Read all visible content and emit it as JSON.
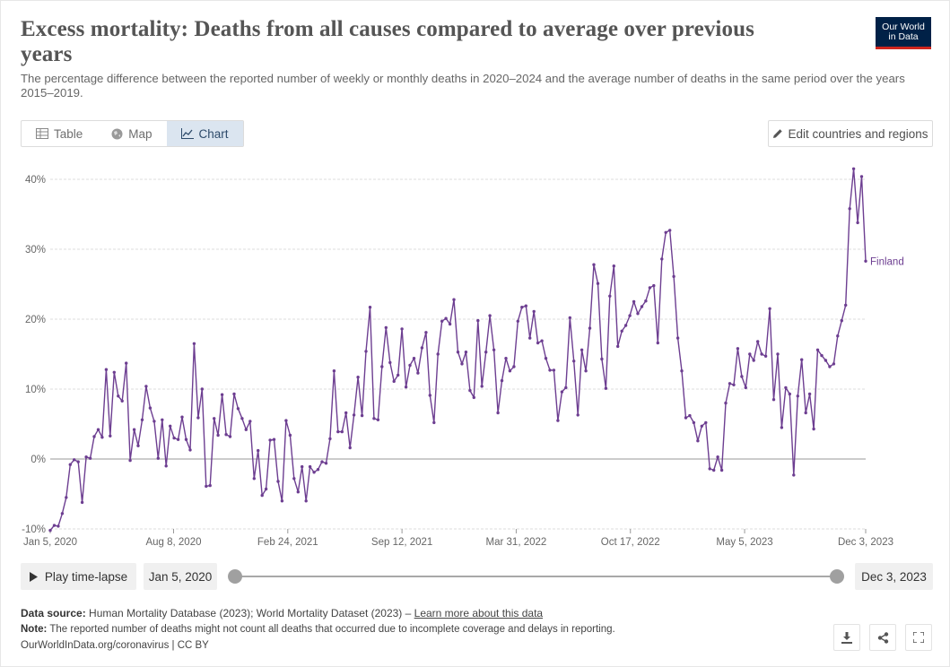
{
  "header": {
    "title": "Excess mortality: Deaths from all causes compared to average over previous years",
    "subtitle": "The percentage difference between the reported number of weekly or monthly deaths in 2020–2024 and the average number of deaths in the same period over the years 2015–2019.",
    "logo_line1": "Our World",
    "logo_line2": "in Data"
  },
  "tabs": [
    {
      "label": "Table",
      "icon": "table-icon"
    },
    {
      "label": "Map",
      "icon": "globe-icon"
    },
    {
      "label": "Chart",
      "icon": "line-chart-icon",
      "active": true
    }
  ],
  "edit_button": {
    "label": "Edit countries and regions",
    "icon": "pencil-icon"
  },
  "chart_data": {
    "type": "line",
    "y_tick_labels": [
      "-10%",
      "0%",
      "10%",
      "20%",
      "30%",
      "40%"
    ],
    "y_ticks": [
      -10,
      0,
      10,
      20,
      30,
      40
    ],
    "ylim": [
      -10,
      42
    ],
    "x_tick_labels": [
      "Jan 5, 2020",
      "Aug 8, 2020",
      "Feb 24, 2021",
      "Sep 12, 2021",
      "Mar 31, 2022",
      "Oct 17, 2022",
      "May 5, 2023",
      "Dec 3, 2023"
    ],
    "x_tick_dates": [
      "2020-01-05",
      "2020-08-08",
      "2021-02-24",
      "2021-09-12",
      "2022-03-31",
      "2022-10-17",
      "2023-05-05",
      "2023-12-03"
    ],
    "grid": "horizontal dotted",
    "series": [
      {
        "name": "Finland",
        "color": "#6d3e91",
        "x_start": "2020-01-05",
        "x_end": "2023-12-03",
        "values": [
          -10.2,
          -9.5,
          -9.6,
          -7.8,
          -5.5,
          -0.8,
          -0.1,
          -0.4,
          -6.2,
          0.3,
          0.1,
          3.2,
          4.2,
          3.1,
          12.8,
          3.3,
          12.4,
          9.0,
          8.3,
          13.7,
          -0.2,
          4.2,
          1.9,
          5.6,
          10.4,
          7.3,
          5.4,
          0.1,
          5.6,
          -1.0,
          4.7,
          3.0,
          2.8,
          6.0,
          2.8,
          1.3,
          16.5,
          5.9,
          10.0,
          -3.9,
          -3.8,
          5.8,
          3.4,
          9.2,
          3.5,
          3.2,
          9.3,
          7.2,
          5.8,
          4.2,
          5.4,
          -2.8,
          1.2,
          -5.2,
          -4.3,
          2.7,
          2.8,
          -3.2,
          -6.0,
          5.5,
          3.4,
          -2.8,
          -4.7,
          -1.1,
          -6.0,
          -1.1,
          -1.9,
          -1.5,
          -0.4,
          -0.6,
          2.9,
          12.6,
          3.9,
          3.9,
          6.6,
          1.6,
          6.3,
          11.7,
          6.2,
          15.4,
          21.7,
          5.8,
          5.6,
          13.2,
          18.8,
          13.8,
          11.1,
          12.0,
          18.6,
          10.3,
          13.4,
          14.4,
          12.3,
          15.9,
          18.1,
          9.1,
          5.2,
          15.0,
          19.7,
          20.1,
          19.3,
          22.8,
          15.3,
          13.6,
          15.3,
          9.8,
          8.8,
          19.8,
          10.4,
          15.3,
          20.5,
          15.6,
          6.6,
          11.2,
          14.4,
          12.6,
          13.2,
          19.7,
          21.7,
          21.9,
          17.3,
          21.1,
          16.6,
          16.9,
          14.4,
          12.7,
          12.7,
          5.5,
          9.6,
          10.2,
          20.2,
          14.0,
          6.3,
          15.6,
          12.6,
          18.7,
          27.8,
          25.1,
          14.3,
          10.1,
          23.3,
          27.6,
          16.1,
          18.3,
          19.1,
          20.5,
          22.5,
          20.8,
          21.8,
          22.6,
          24.5,
          24.8,
          16.6,
          28.6,
          32.4,
          32.7,
          26.1,
          17.3,
          12.6,
          5.9,
          6.2,
          5.2,
          2.6,
          4.7,
          5.2,
          -1.4,
          -1.6,
          0.3,
          -1.6,
          8.0,
          10.8,
          10.6,
          15.8,
          11.8,
          10.2,
          15.0,
          14.1,
          16.8,
          15.0,
          14.7,
          21.5,
          8.5,
          15.0,
          4.5,
          10.2,
          9.3,
          -2.3,
          9.0,
          14.2,
          6.6,
          9.3,
          4.3,
          15.6,
          14.8,
          14.1,
          13.2,
          13.6,
          17.6,
          19.8,
          22.0,
          35.8,
          41.5,
          33.8,
          40.4,
          28.3
        ]
      }
    ]
  },
  "timeline": {
    "play_label": "Play time-lapse",
    "start_label": "Jan 5, 2020",
    "end_label": "Dec 3, 2023",
    "start_fraction": 0,
    "end_fraction": 1
  },
  "footer": {
    "source_label": "Data source:",
    "source_text": "Human Mortality Database (2023); World Mortality Dataset (2023) – ",
    "source_link": "Learn more about this data",
    "note_label": "Note:",
    "note_text": "The reported number of deaths might not count all deaths that occurred due to incomplete coverage and delays in reporting.",
    "url_text": "OurWorldInData.org/coronavirus | CC BY"
  },
  "actions": [
    {
      "name": "download-button",
      "icon": "download-icon"
    },
    {
      "name": "share-button",
      "icon": "share-icon"
    },
    {
      "name": "fullscreen-button",
      "icon": "expand-icon"
    }
  ]
}
